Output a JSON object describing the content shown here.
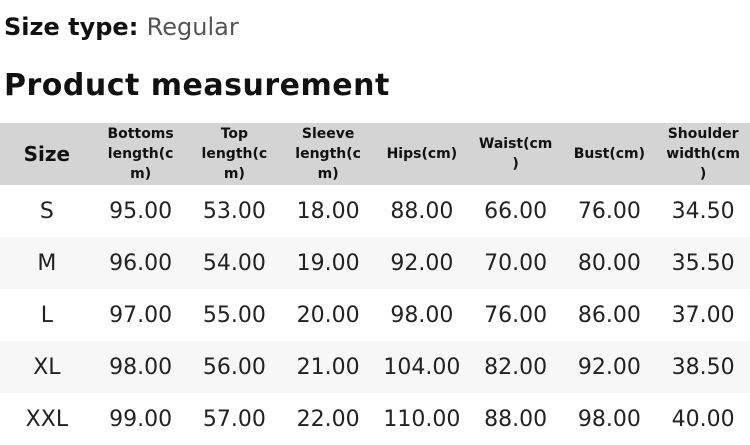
{
  "page": {
    "size_type_label": "Size type:",
    "size_type_value": "Regular",
    "section_title": "Product measurement"
  },
  "table": {
    "columns": [
      {
        "label": "Size"
      },
      {
        "label": "Bottoms\nlength(c\nm)"
      },
      {
        "label": "Top\nlength(c\nm)"
      },
      {
        "label": "Sleeve\nlength(c\nm)"
      },
      {
        "label": "Hips(cm)"
      },
      {
        "label": "Waist(cm\n)"
      },
      {
        "label": "Bust(cm)"
      },
      {
        "label": "Shoulder\nwidth(cm\n)"
      }
    ],
    "rows": [
      {
        "size": "S",
        "values": [
          "95.00",
          "53.00",
          "18.00",
          "88.00",
          "66.00",
          "76.00",
          "34.50"
        ]
      },
      {
        "size": "M",
        "values": [
          "96.00",
          "54.00",
          "19.00",
          "92.00",
          "70.00",
          "80.00",
          "35.50"
        ]
      },
      {
        "size": "L",
        "values": [
          "97.00",
          "55.00",
          "20.00",
          "98.00",
          "76.00",
          "86.00",
          "37.00"
        ]
      },
      {
        "size": "XL",
        "values": [
          "98.00",
          "56.00",
          "21.00",
          "104.00",
          "82.00",
          "92.00",
          "38.50"
        ]
      },
      {
        "size": "XXL",
        "values": [
          "99.00",
          "57.00",
          "22.00",
          "110.00",
          "88.00",
          "98.00",
          "40.00"
        ]
      }
    ]
  },
  "colors": {
    "header_bg": "#d4d4d4",
    "stripe_bg": "#f7f7f7",
    "title_color": "#111111",
    "muted_color": "#555555",
    "data_color": "#222222"
  }
}
